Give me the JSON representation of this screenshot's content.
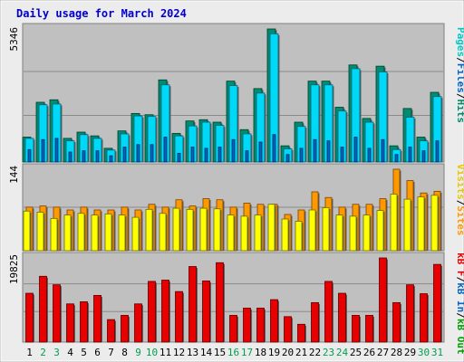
{
  "title": "Daily usage for March 2024",
  "colors": {
    "frame_bg": "#ececec",
    "panel_bg": "#c0c0c0",
    "title": "#0000cc",
    "pages": "#00c8c8",
    "files": "#0064c8",
    "hits": "#008c6e",
    "visits": "#ffff00",
    "sites": "#ff9900",
    "kb_in": "#0064c8",
    "kb_out": "#00a000",
    "kb_f": "#e80000",
    "weekend_label": "#00a050",
    "weekday_label": "#000000"
  },
  "chart_data": {
    "type": "bar",
    "title": "Daily usage for March 2024",
    "categories": [
      "1",
      "2",
      "3",
      "4",
      "5",
      "6",
      "7",
      "8",
      "9",
      "10",
      "11",
      "12",
      "13",
      "14",
      "15",
      "16",
      "17",
      "18",
      "19",
      "20",
      "21",
      "22",
      "23",
      "24",
      "25",
      "26",
      "27",
      "28",
      "29",
      "30",
      "31"
    ],
    "weekend_days": [
      "2",
      "3",
      "9",
      "10",
      "16",
      "17",
      "23",
      "24",
      "30",
      "31"
    ],
    "panels": [
      {
        "id": "hits",
        "ymax_label": "5346",
        "ymax": 5346,
        "legend": [
          {
            "text": "Pages",
            "color": "#00c8c8"
          },
          {
            "text": "/",
            "color": "#000000"
          },
          {
            "text": "Files",
            "color": "#0064c8"
          },
          {
            "text": "/",
            "color": "#000000"
          },
          {
            "text": "Hits",
            "color": "#008c6e"
          }
        ],
        "series": [
          {
            "name": "Hits",
            "values": [
              1000,
              2400,
              2500,
              950,
              1200,
              1050,
              550,
              1250,
              1950,
              1900,
              3300,
              1150,
              1650,
              1700,
              1600,
              3250,
              1300,
              2950,
              5346,
              650,
              1600,
              3250,
              3250,
              2200,
              3900,
              1750,
              3850,
              650,
              2150,
              1000,
              2800
            ]
          },
          {
            "name": "Files",
            "values": [
              950,
              2300,
              2330,
              850,
              1100,
              950,
              480,
              1130,
              1850,
              1830,
              3100,
              1050,
              1450,
              1600,
              1470,
              3070,
              1130,
              2770,
              5150,
              530,
              1430,
              3100,
              3100,
              2050,
              3750,
              1600,
              3620,
              500,
              1800,
              850,
              2630
            ]
          },
          {
            "name": "Pages",
            "values": [
              500,
              900,
              950,
              400,
              450,
              450,
              250,
              600,
              700,
              700,
              1000,
              350,
              600,
              550,
              600,
              900,
              450,
              800,
              1100,
              300,
              550,
              900,
              850,
              600,
              1000,
              550,
              900,
              300,
              600,
              450,
              850
            ]
          }
        ]
      },
      {
        "id": "visits",
        "ymax_label": "144",
        "ymax": 144,
        "legend": [
          {
            "text": "Visits",
            "color": "#e8c800"
          },
          {
            "text": "/",
            "color": "#000000"
          },
          {
            "text": "Sites",
            "color": "#ff9900"
          }
        ],
        "series": [
          {
            "name": "Sites",
            "values": [
              77,
              79,
              77,
              72,
              77,
              72,
              72,
              77,
              72,
              82,
              77,
              90,
              79,
              92,
              90,
              77,
              84,
              82,
              82,
              64,
              72,
              104,
              94,
              77,
              82,
              82,
              92,
              144,
              124,
              102,
              105
            ]
          },
          {
            "name": "Visits",
            "values": [
              70,
              68,
              57,
              63,
              66,
              63,
              65,
              63,
              59,
              73,
              66,
              75,
              73,
              75,
              74,
              63,
              61,
              63,
              82,
              56,
              52,
              72,
              76,
              63,
              61,
              63,
              71,
              100,
              91,
              95,
              98
            ]
          }
        ]
      },
      {
        "id": "kbytes",
        "ymax_label": "19825",
        "ymax": 19825,
        "legend": [
          {
            "text": "kB F",
            "color": "#e80000"
          },
          {
            "text": "/",
            "color": "#000000"
          },
          {
            "text": "kB In",
            "color": "#0064c8"
          },
          {
            "text": "/",
            "color": "#000000"
          },
          {
            "text": "kB Out",
            "color": "#00a000"
          }
        ],
        "series": [
          {
            "name": "kB F",
            "values": [
              11500,
              15500,
              13500,
              9000,
              9500,
              11000,
              5300,
              6300,
              9000,
              14300,
              14600,
              11900,
              17800,
              14400,
              18700,
              6300,
              8000,
              8000,
              10000,
              6000,
              4200,
              9300,
              14300,
              11500,
              6300,
              6300,
              19825,
              9300,
              13500,
              11400,
              18300
            ]
          }
        ]
      }
    ]
  }
}
